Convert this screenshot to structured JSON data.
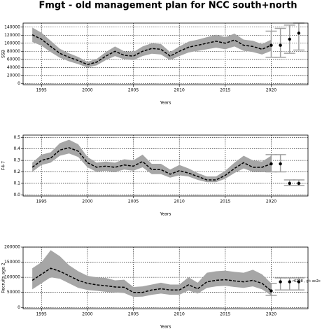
{
  "chart_data": [
    {
      "type": "line",
      "title": "Fmgt - old management plan for NCC south+north",
      "x_label": "Years",
      "y_label": "SSB",
      "x": [
        1994,
        1995,
        1996,
        1997,
        1998,
        1999,
        2000,
        2001,
        2002,
        2003,
        2004,
        2005,
        2006,
        2007,
        2008,
        2009,
        2010,
        2011,
        2012,
        2013,
        2014,
        2015,
        2016,
        2017,
        2018,
        2019,
        2020
      ],
      "values": [
        121000,
        110000,
        92000,
        75000,
        65000,
        57000,
        47000,
        53000,
        68000,
        80000,
        70000,
        68000,
        80000,
        87000,
        85000,
        68000,
        80000,
        90000,
        95000,
        100000,
        105000,
        100000,
        108000,
        95000,
        92000,
        85000,
        95000
      ],
      "band_lower": [
        103000,
        94000,
        78000,
        64000,
        55000,
        48000,
        40000,
        45000,
        58000,
        68000,
        60000,
        58000,
        68000,
        74000,
        72000,
        58000,
        68000,
        77000,
        81000,
        85000,
        89000,
        85000,
        92000,
        81000,
        78000,
        72000,
        81000
      ],
      "band_upper": [
        139000,
        126000,
        106000,
        86000,
        75000,
        66000,
        54000,
        61000,
        78000,
        92000,
        80000,
        78000,
        92000,
        100000,
        98000,
        78000,
        92000,
        104000,
        109000,
        115000,
        121000,
        115000,
        124000,
        109000,
        106000,
        98000,
        109000
      ],
      "projection": {
        "x": [
          2020,
          2021,
          2022,
          2023
        ],
        "values": [
          95000,
          95000,
          110000,
          125000
        ],
        "lower": [
          65000,
          65000,
          75000,
          83000
        ],
        "upper": [
          130000,
          137000,
          145000,
          150000
        ]
      },
      "xlim": [
        1993,
        2024
      ],
      "xticks": [
        1995,
        2000,
        2005,
        2010,
        2015,
        2020
      ],
      "ylim": [
        -3000,
        150000
      ],
      "yticks": [
        0,
        20000,
        40000,
        60000,
        80000,
        100000,
        120000,
        140000
      ],
      "grid": true,
      "color": "#000000",
      "band_color": "#a6a6a6",
      "error_color": "#a0a0a0"
    },
    {
      "type": "line",
      "x_label": "Years",
      "y_label": "F4-7",
      "x": [
        1994,
        1995,
        1996,
        1997,
        1998,
        1999,
        2000,
        2001,
        2002,
        2003,
        2004,
        2005,
        2006,
        2007,
        2008,
        2009,
        2010,
        2011,
        2012,
        2013,
        2014,
        2015,
        2016,
        2017,
        2018,
        2019,
        2020
      ],
      "values": [
        0.24,
        0.3,
        0.32,
        0.39,
        0.41,
        0.38,
        0.28,
        0.24,
        0.25,
        0.24,
        0.26,
        0.25,
        0.29,
        0.22,
        0.22,
        0.18,
        0.21,
        0.19,
        0.16,
        0.13,
        0.13,
        0.17,
        0.23,
        0.28,
        0.24,
        0.24,
        0.27
      ],
      "band_lower": [
        0.2,
        0.26,
        0.28,
        0.34,
        0.36,
        0.33,
        0.24,
        0.2,
        0.21,
        0.2,
        0.22,
        0.21,
        0.24,
        0.18,
        0.18,
        0.15,
        0.17,
        0.16,
        0.13,
        0.11,
        0.11,
        0.14,
        0.19,
        0.23,
        0.2,
        0.2,
        0.2
      ],
      "band_upper": [
        0.28,
        0.35,
        0.37,
        0.45,
        0.48,
        0.44,
        0.33,
        0.28,
        0.29,
        0.28,
        0.31,
        0.3,
        0.35,
        0.27,
        0.27,
        0.22,
        0.26,
        0.23,
        0.19,
        0.16,
        0.16,
        0.21,
        0.28,
        0.34,
        0.3,
        0.29,
        0.34
      ],
      "projection": {
        "x": [
          2020,
          2021,
          2022,
          2023
        ],
        "values": [
          0.27,
          0.27,
          0.1,
          0.1
        ],
        "lower": [
          0.2,
          0.2,
          0.08,
          0.08
        ],
        "upper": [
          0.35,
          0.35,
          0.13,
          0.13
        ]
      },
      "xlim": [
        1993,
        2024
      ],
      "xticks": [
        1995,
        2000,
        2005,
        2010,
        2015,
        2020
      ],
      "ylim": [
        -0.01,
        0.52
      ],
      "yticks": [
        {
          "value": 0,
          "label": "0.0"
        },
        0.1,
        0.2,
        0.3,
        0.4,
        0.5
      ],
      "grid": true,
      "color": "#000000",
      "band_color": "#a6a6a6",
      "error_color": "#a0a0a0"
    },
    {
      "type": "line",
      "x_label": "Years",
      "y_label": "Recruits age 2",
      "annotation": "r6208 , gt: ec2c",
      "x": [
        1994,
        1995,
        1996,
        1997,
        1998,
        1999,
        2000,
        2001,
        2002,
        2003,
        2004,
        2005,
        2006,
        2007,
        2008,
        2009,
        2010,
        2011,
        2012,
        2013,
        2014,
        2015,
        2016,
        2017,
        2018,
        2019,
        2020
      ],
      "values": [
        90000,
        110000,
        130000,
        120000,
        105000,
        90000,
        80000,
        75000,
        72000,
        68000,
        67000,
        50000,
        50000,
        58000,
        62000,
        58000,
        58000,
        75000,
        62000,
        85000,
        90000,
        92000,
        88000,
        85000,
        90000,
        80000,
        55000
      ],
      "band_lower": [
        60000,
        80000,
        100000,
        95000,
        80000,
        65000,
        58000,
        55000,
        52000,
        50000,
        48000,
        35000,
        36000,
        42000,
        46000,
        42000,
        42000,
        56000,
        46000,
        65000,
        70000,
        72000,
        68000,
        65000,
        70000,
        60000,
        40000
      ],
      "band_upper": [
        130000,
        150000,
        190000,
        170000,
        140000,
        120000,
        105000,
        100000,
        98000,
        90000,
        92000,
        68000,
        70000,
        76000,
        82000,
        76000,
        76000,
        100000,
        82000,
        115000,
        120000,
        122000,
        118000,
        115000,
        125000,
        110000,
        80000
      ],
      "projection": {
        "x": [
          2020,
          2021,
          2022,
          2023
        ],
        "values": [
          55000,
          85000,
          85000,
          85000
        ],
        "lower": [
          40000,
          58000,
          58000,
          58000
        ],
        "upper": [
          80000,
          98000,
          98000,
          98000
        ]
      },
      "xlim": [
        1993,
        2024
      ],
      "xticks": [
        1995,
        2000,
        2005,
        2010,
        2015,
        2020
      ],
      "ylim": [
        -4000,
        200000
      ],
      "yticks": [
        0,
        50000,
        100000,
        150000,
        200000
      ],
      "grid": true,
      "color": "#000000",
      "band_color": "#a6a6a6",
      "error_color": "#a0a0a0"
    }
  ]
}
